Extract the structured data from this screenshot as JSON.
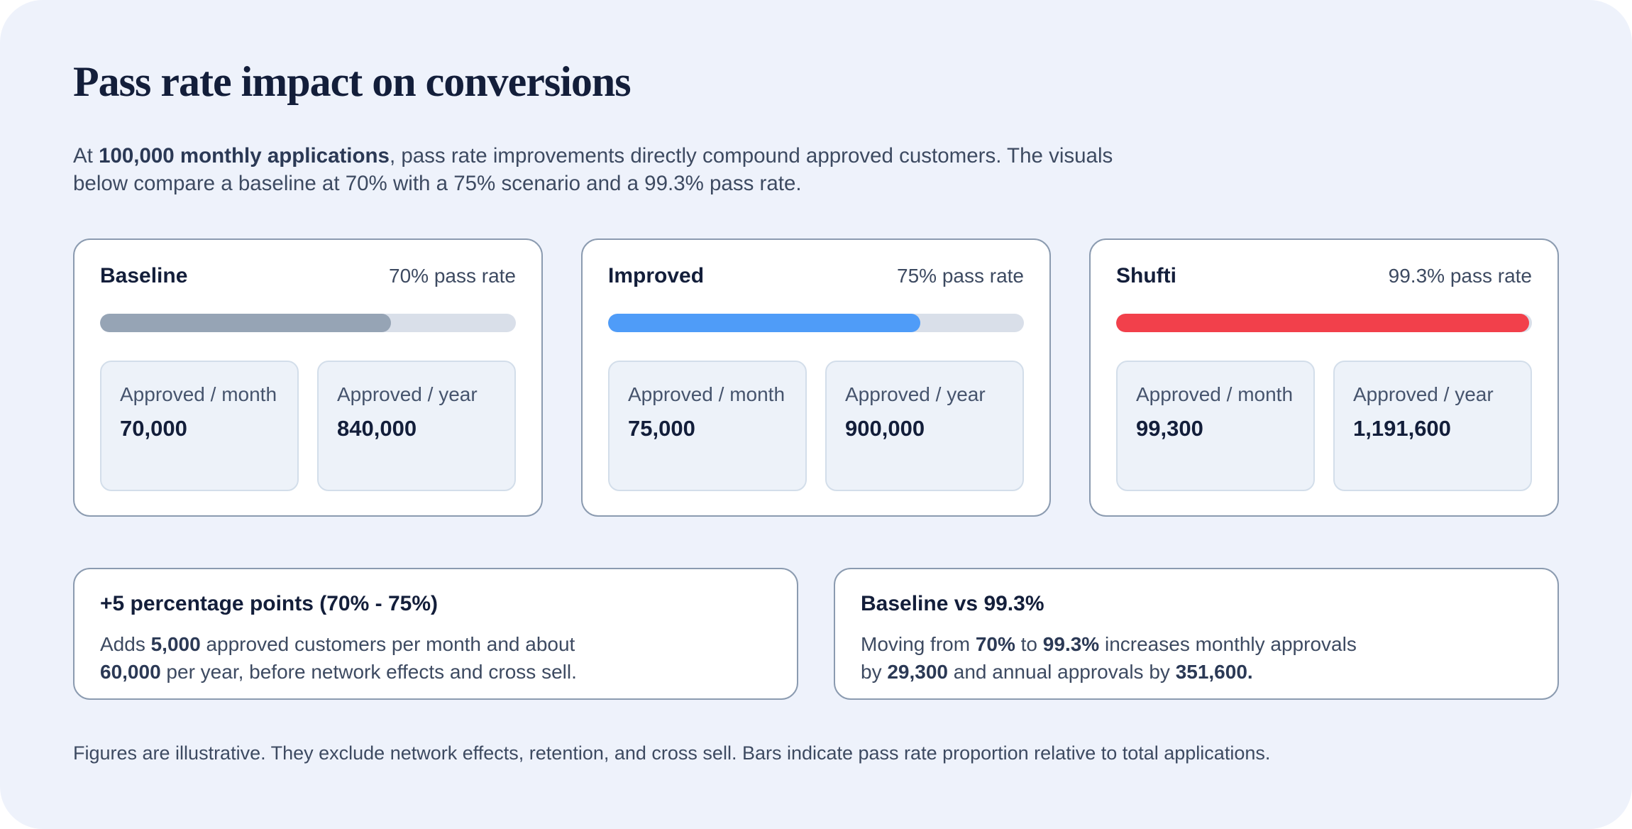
{
  "page": {
    "title": "Pass rate impact on conversions",
    "intro_segments": [
      {
        "text": "At "
      },
      {
        "text": "100,000 monthly applications",
        "bold": true
      },
      {
        "text": ", pass rate improvements directly compound approved customers. The visuals"
      },
      {
        "br": true
      },
      {
        "text": "below compare a baseline at 70% with a 75% scenario and a 99.3% pass rate."
      }
    ],
    "footnote": "Figures are illustrative. They exclude network effects, retention, and cross sell. Bars indicate pass rate proportion relative to total applications."
  },
  "colors": {
    "page_background": "#eef2fb",
    "card_background": "#ffffff",
    "card_border": "#8b9bb0",
    "tile_background": "#edf2f9",
    "tile_border": "#d3deea",
    "bar_track": "#d9dfe9",
    "baseline_bar": "#96a4b5",
    "improved_bar": "#4f9cf8",
    "shufti_bar": "#f2404b",
    "heading_navy": "#131e3a",
    "body_text": "#3d4a61"
  },
  "scenario_cards": [
    {
      "name": "Baseline",
      "rate_label": "70% pass rate",
      "pass_rate_pct": 70,
      "bar_color": "#96a4b5",
      "bar_style": "width:70%;background:#96a4b5",
      "stats": [
        {
          "label": "Approved / month",
          "value": "70,000"
        },
        {
          "label": "Approved / year",
          "value": "840,000"
        }
      ]
    },
    {
      "name": "Improved",
      "rate_label": "75% pass rate",
      "pass_rate_pct": 75,
      "bar_color": "#4f9cf8",
      "bar_style": "width:75%;background:#4f9cf8",
      "stats": [
        {
          "label": "Approved / month",
          "value": "75,000"
        },
        {
          "label": "Approved / year",
          "value": "900,000"
        }
      ]
    },
    {
      "name": "Shufti",
      "rate_label": "99.3% pass rate",
      "pass_rate_pct": 99.3,
      "bar_color": "#f2404b",
      "bar_style": "width:99.3%;background:#f2404b",
      "stats": [
        {
          "label": "Approved / month",
          "value": "99,300"
        },
        {
          "label": "Approved / year",
          "value": "1,191,600"
        }
      ]
    }
  ],
  "insight_cards": [
    {
      "title": "+5 percentage points (70% - 75%)",
      "body_segments": [
        {
          "text": "Adds "
        },
        {
          "text": "5,000",
          "bold": true
        },
        {
          "text": " approved customers per month and about"
        },
        {
          "br": true
        },
        {
          "text": "60,000",
          "bold": true
        },
        {
          "text": " per year, before network effects and cross sell."
        }
      ]
    },
    {
      "title": "Baseline vs 99.3%",
      "body_segments": [
        {
          "text": "Moving from "
        },
        {
          "text": "70%",
          "bold": true
        },
        {
          "text": " to "
        },
        {
          "text": "99.3%",
          "bold": true
        },
        {
          "text": " increases monthly approvals"
        },
        {
          "br": true
        },
        {
          "text": "by "
        },
        {
          "text": "29,300",
          "bold": true
        },
        {
          "text": " and annual approvals by "
        },
        {
          "text": "351,600.",
          "bold": true
        }
      ]
    }
  ],
  "chart_data": {
    "type": "bar",
    "title": "Pass rate impact on conversions",
    "categories": [
      "Baseline",
      "Improved",
      "Shufti"
    ],
    "series": [
      {
        "name": "Pass rate (%)",
        "values": [
          70,
          75,
          99.3
        ]
      },
      {
        "name": "Approved / month",
        "values": [
          70000,
          75000,
          99300
        ]
      },
      {
        "name": "Approved / year",
        "values": [
          840000,
          900000,
          1191600
        ]
      }
    ],
    "xlabel": "",
    "ylabel": "Pass rate proportion relative to total applications",
    "ylim": [
      0,
      100
    ],
    "grid": false,
    "legend_position": "none",
    "notes": "Bars indicate pass rate proportion relative to total applications; monthly volume assumption is 100,000 applications."
  }
}
